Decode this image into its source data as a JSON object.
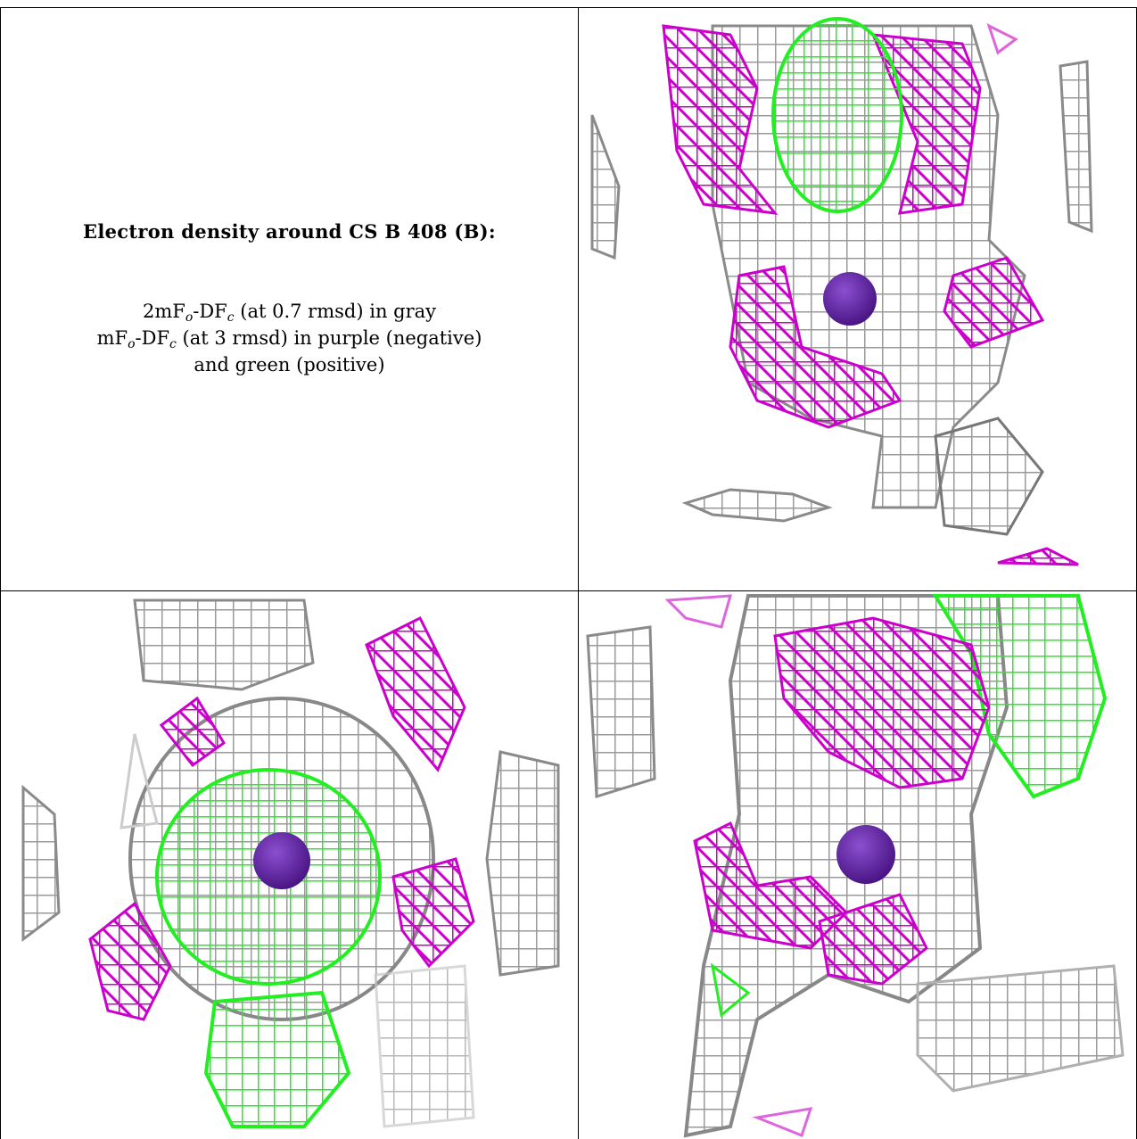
{
  "title": "Electron density around CS B 408 (B):",
  "legend": {
    "line1_a": "2mF",
    "line1_o": "o",
    "line1_b": "-DF",
    "line1_c": "c",
    "line1_rest": " (at 0.7 rmsd) in gray",
    "line2_a": "mF",
    "line2_o": "o",
    "line2_b": "-DF",
    "line2_c": "c",
    "line2_rest": " (at 3 rmsd) in purple (negative)",
    "line3": "and green (positive)"
  },
  "colors": {
    "gray_mesh": "#9a9a9a",
    "negative_mesh": "#cc00cc",
    "positive_mesh": "#22ee22",
    "atom": "#5b1fa0"
  },
  "panels": [
    {
      "name": "view-top-right",
      "icon": "density-mesh-view"
    },
    {
      "name": "view-bottom-left",
      "icon": "density-mesh-view"
    },
    {
      "name": "view-bottom-right",
      "icon": "density-mesh-view"
    }
  ]
}
